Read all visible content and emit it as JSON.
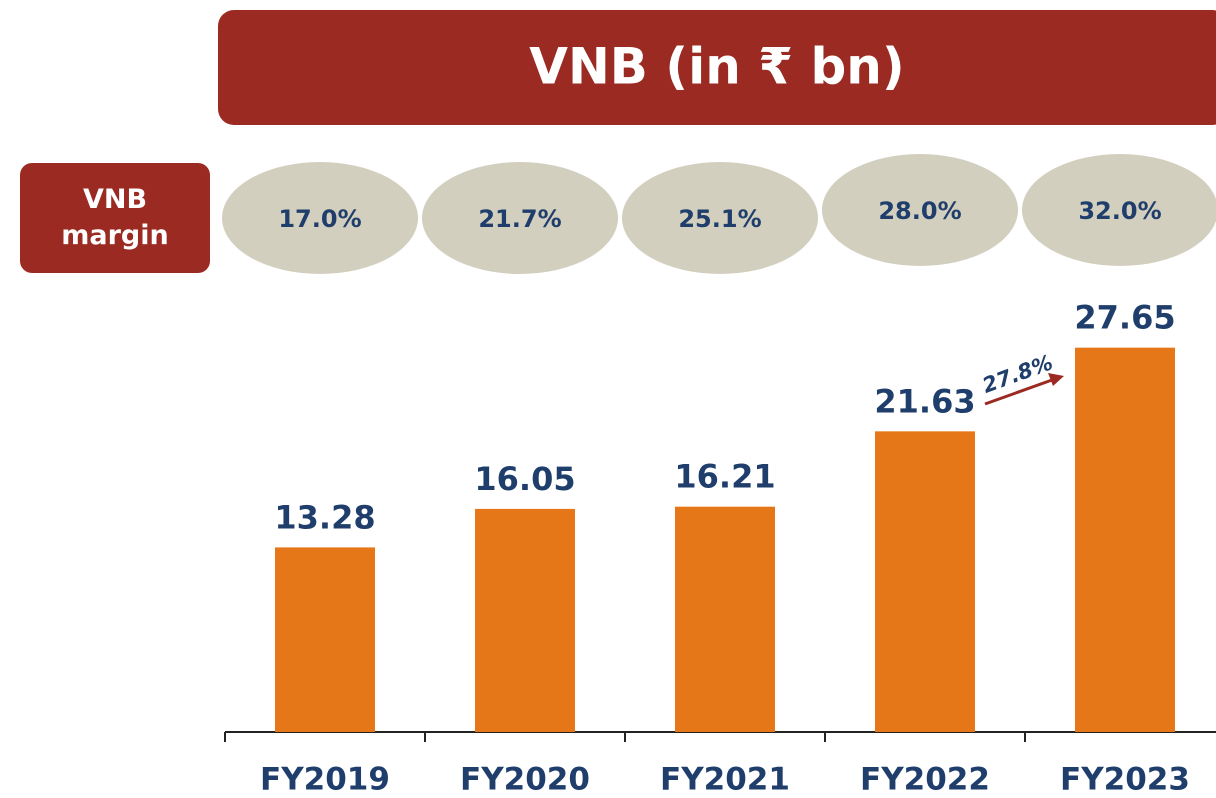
{
  "chart_data": {
    "type": "bar",
    "title": "VNB (in ₹ bn)",
    "categories": [
      "FY2019",
      "FY2020",
      "FY2021",
      "FY2022",
      "FY2023"
    ],
    "values": [
      13.28,
      16.05,
      16.21,
      21.63,
      27.65
    ],
    "color": "#e57718",
    "ylim": [
      0,
      30
    ],
    "margin": {
      "label": "VNB margin",
      "values": [
        17.0,
        21.7,
        25.1,
        28.0,
        32.0
      ],
      "value_labels": [
        "17.0%",
        "21.7%",
        "25.1%",
        "28.0%",
        "32.0%"
      ]
    },
    "annotation": "27.8%"
  }
}
